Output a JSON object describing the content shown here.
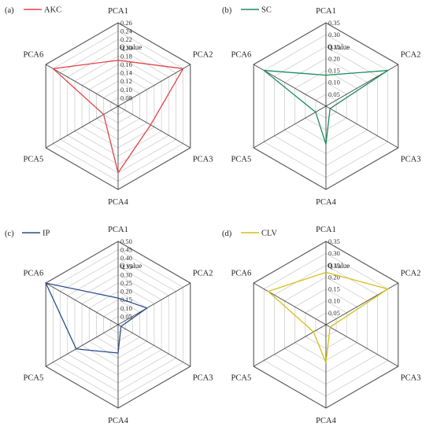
{
  "figure_title": "",
  "chart_data": [
    {
      "type": "radar",
      "panel_tag": "(a)",
      "series": [
        {
          "name": "AKC",
          "color": "#e0464b",
          "values": [
            0.17,
            0.24,
            0.15,
            0.22,
            0.1,
            0.24
          ]
        }
      ],
      "axes": [
        "PCA1",
        "PCA2",
        "PCA3",
        "PCA4",
        "PCA5",
        "PCA6"
      ],
      "center_label": "Q value",
      "rlim": [
        0.06,
        0.26
      ],
      "ticks": [
        "0.08",
        "0.10",
        "0.12",
        "0.14",
        "0.16",
        "0.18",
        "0.20",
        "0.22",
        "0.24",
        "0.26"
      ],
      "tick_values": [
        0.08,
        0.1,
        0.12,
        0.14,
        0.16,
        0.18,
        0.2,
        0.22,
        0.24,
        0.26
      ],
      "grid": true,
      "legend": "top-left"
    },
    {
      "type": "radar",
      "panel_tag": "(b)",
      "series": [
        {
          "name": "SC",
          "color": "#1a8c5e",
          "values": [
            0.13,
            0.3,
            0.02,
            0.16,
            0.05,
            0.3
          ]
        }
      ],
      "axes": [
        "PCA1",
        "PCA2",
        "PCA3",
        "PCA4",
        "PCA5",
        "PCA6"
      ],
      "center_label": "Q value",
      "rlim": [
        0.0,
        0.35
      ],
      "ticks": [
        "0.05",
        "0.10",
        "0.15",
        "0.20",
        "0.25",
        "0.30",
        "0.35"
      ],
      "tick_values": [
        0.05,
        0.1,
        0.15,
        0.2,
        0.25,
        0.3,
        0.35
      ],
      "grid": true,
      "legend": "top-left"
    },
    {
      "type": "radar",
      "panel_tag": "(c)",
      "series": [
        {
          "name": "IP",
          "color": "#2b4c8c",
          "values": [
            0.16,
            0.2,
            0.02,
            0.17,
            0.29,
            0.5
          ]
        }
      ],
      "axes": [
        "PCA1",
        "PCA2",
        "PCA3",
        "PCA4",
        "PCA5",
        "PCA6"
      ],
      "center_label": "Q value",
      "rlim": [
        0.0,
        0.5
      ],
      "ticks": [
        "0.05",
        "0.10",
        "0.15",
        "0.20",
        "0.25",
        "0.30",
        "0.35",
        "0.40",
        "0.45",
        "0.50"
      ],
      "tick_values": [
        0.05,
        0.1,
        0.15,
        0.2,
        0.25,
        0.3,
        0.35,
        0.4,
        0.45,
        0.5
      ],
      "grid": true,
      "legend": "top-left"
    },
    {
      "type": "radar",
      "panel_tag": "(d)",
      "series": [
        {
          "name": "CLV",
          "color": "#d6bf1a",
          "values": [
            0.22,
            0.3,
            0.02,
            0.16,
            0.06,
            0.28
          ]
        }
      ],
      "axes": [
        "PCA1",
        "PCA2",
        "PCA3",
        "PCA4",
        "PCA5",
        "PCA6"
      ],
      "center_label": "Q value",
      "rlim": [
        0.0,
        0.35
      ],
      "ticks": [
        "0.05",
        "0.10",
        "0.15",
        "0.20",
        "0.25",
        "0.30",
        "0.35"
      ],
      "tick_values": [
        0.05,
        0.1,
        0.15,
        0.2,
        0.25,
        0.3,
        0.35
      ],
      "grid": true,
      "legend": "top-left"
    }
  ]
}
